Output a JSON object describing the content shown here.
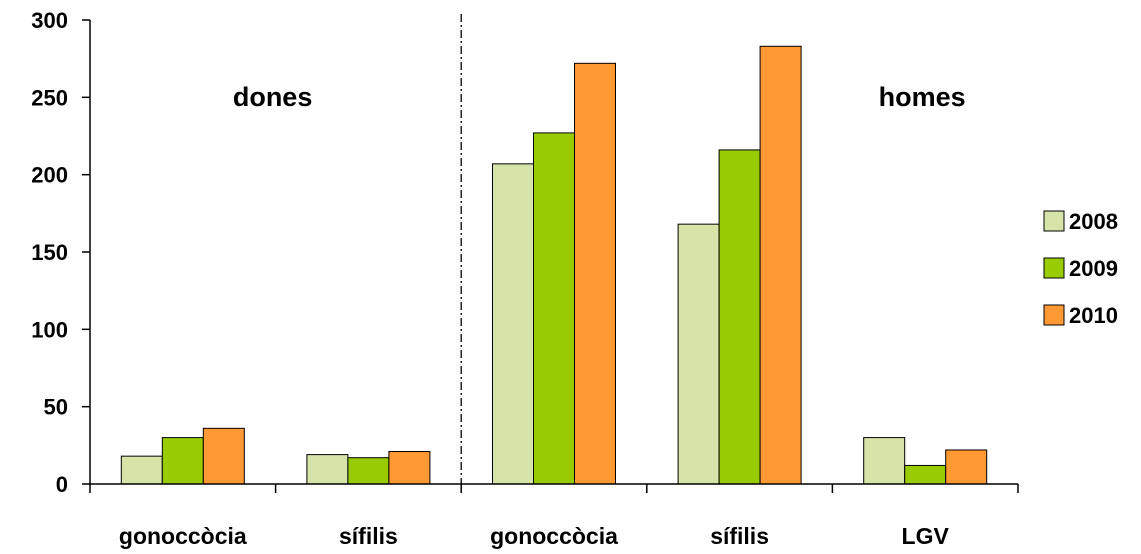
{
  "chart_data": {
    "type": "bar",
    "categories": [
      "gonoccòcia",
      "sífilis",
      "gonoccòcia",
      "sífilis",
      "LGV"
    ],
    "series": [
      {
        "name": "2008",
        "color": "#d7e4a9",
        "values": [
          18,
          19,
          207,
          168,
          30
        ]
      },
      {
        "name": "2009",
        "color": "#99cc00",
        "values": [
          30,
          17,
          227,
          216,
          12
        ]
      },
      {
        "name": "2010",
        "color": "#ff9933",
        "values": [
          36,
          21,
          272,
          283,
          22
        ]
      }
    ],
    "group_labels": [
      {
        "text": "dones",
        "categories": [
          0,
          1
        ]
      },
      {
        "text": "homes",
        "categories": [
          2,
          3,
          4
        ]
      }
    ],
    "ylim": [
      0,
      300
    ],
    "yticks": [
      0,
      50,
      100,
      150,
      200,
      250,
      300
    ],
    "grid": false,
    "legend_position": "right",
    "group_divider": "dash-dot vertical line between sífilis and gonoccòcia",
    "xlabel": "",
    "ylabel": "",
    "title": ""
  }
}
